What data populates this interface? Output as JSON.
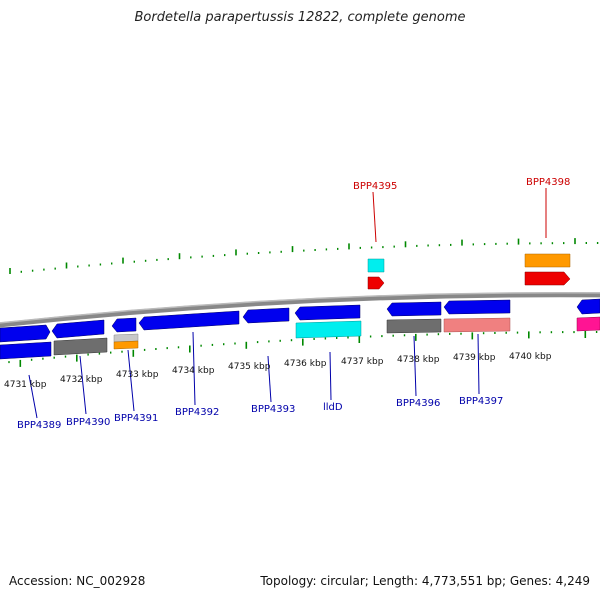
{
  "title": "Bordetella parapertussis 12822, complete genome",
  "footer": {
    "accession": "Accession: NC_002928",
    "topology": "Topology: circular; Length: 4,773,551 bp; Genes: 4,249"
  },
  "scale_labels": [
    "4731 kbp",
    "4732 kbp",
    "4733 kbp",
    "4734 kbp",
    "4735 kbp",
    "4736 kbp",
    "4737 kbp",
    "4738 kbp",
    "4739 kbp",
    "4740 kbp"
  ],
  "gene_labels_top": [
    {
      "name": "BPP4395",
      "color": "#cc0000"
    },
    {
      "name": "BPP4398",
      "color": "#cc0000"
    }
  ],
  "gene_labels_bottom": [
    {
      "name": "BPP4389",
      "color": "#0000aa"
    },
    {
      "name": "BPP4390",
      "color": "#0000aa"
    },
    {
      "name": "BPP4391",
      "color": "#0000aa"
    },
    {
      "name": "BPP4392",
      "color": "#0000aa"
    },
    {
      "name": "BPP4393",
      "color": "#0000aa"
    },
    {
      "name": "lldD",
      "color": "#0000aa"
    },
    {
      "name": "BPP4396",
      "color": "#0000aa"
    },
    {
      "name": "BPP4397",
      "color": "#0000aa"
    }
  ],
  "colors": {
    "forward_gene": "#0000ee",
    "reverse_gene": "#0000ee",
    "grey_track": "#6e6e6e",
    "cyan_track": "#00eeee",
    "orange_track": "#ff9900",
    "red_track": "#ee0000",
    "salmon_track": "#f08080",
    "magenta_track": "#ff1493",
    "tick_green": "#008800",
    "backbone": "#888888"
  }
}
